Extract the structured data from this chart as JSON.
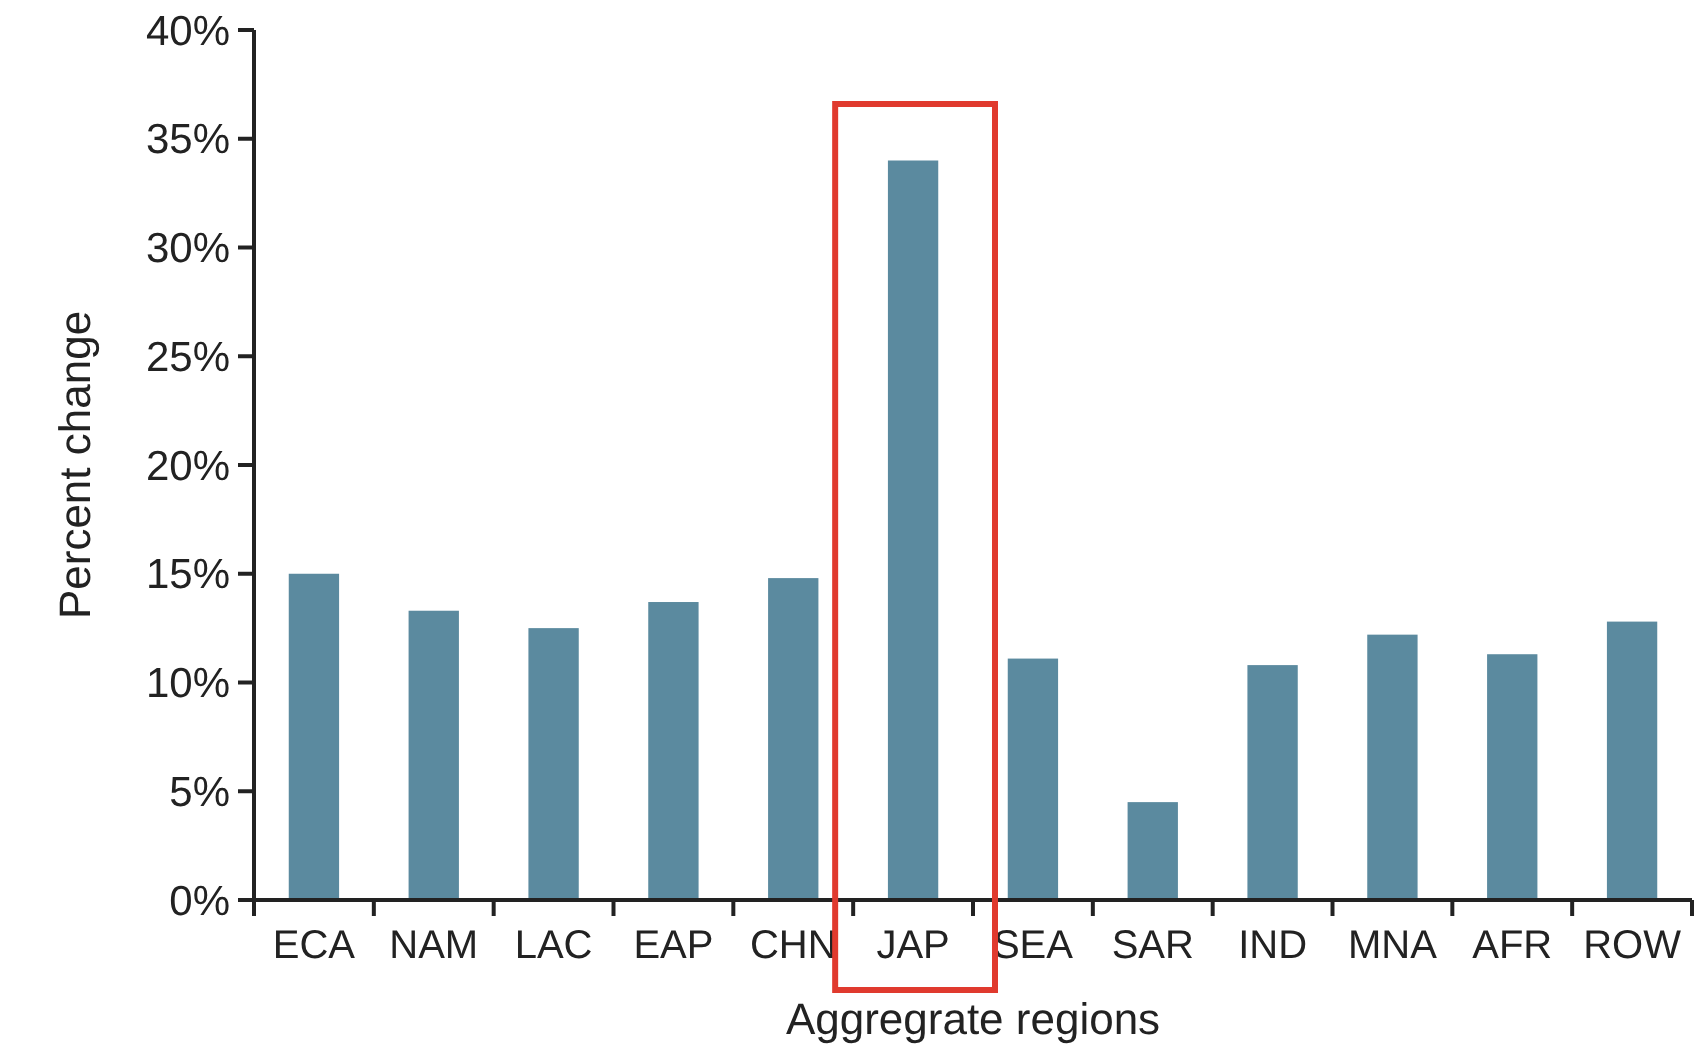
{
  "chart_data": {
    "type": "bar",
    "xlabel": "Aggregrate regions",
    "ylabel": "Percent change",
    "categories": [
      "ECA",
      "NAM",
      "LAC",
      "EAP",
      "CHN",
      "JAP",
      "SEA",
      "SAR",
      "IND",
      "MNA",
      "AFR",
      "ROW"
    ],
    "values": [
      15.0,
      13.3,
      12.5,
      13.7,
      14.8,
      34.0,
      11.1,
      4.5,
      10.8,
      12.2,
      11.3,
      12.8
    ],
    "color": "#5b8a9f",
    "ylim": [
      0,
      40
    ],
    "yticks": [
      {
        "value": 0,
        "label": "0%"
      },
      {
        "value": 5,
        "label": "5%"
      },
      {
        "value": 10,
        "label": "10%"
      },
      {
        "value": 15,
        "label": "15%"
      },
      {
        "value": 20,
        "label": "20%"
      },
      {
        "value": 25,
        "label": "25%"
      },
      {
        "value": 30,
        "label": "30%"
      },
      {
        "value": 35,
        "label": "35%"
      },
      {
        "value": 40,
        "label": "40%"
      }
    ],
    "grid": false
  }
}
